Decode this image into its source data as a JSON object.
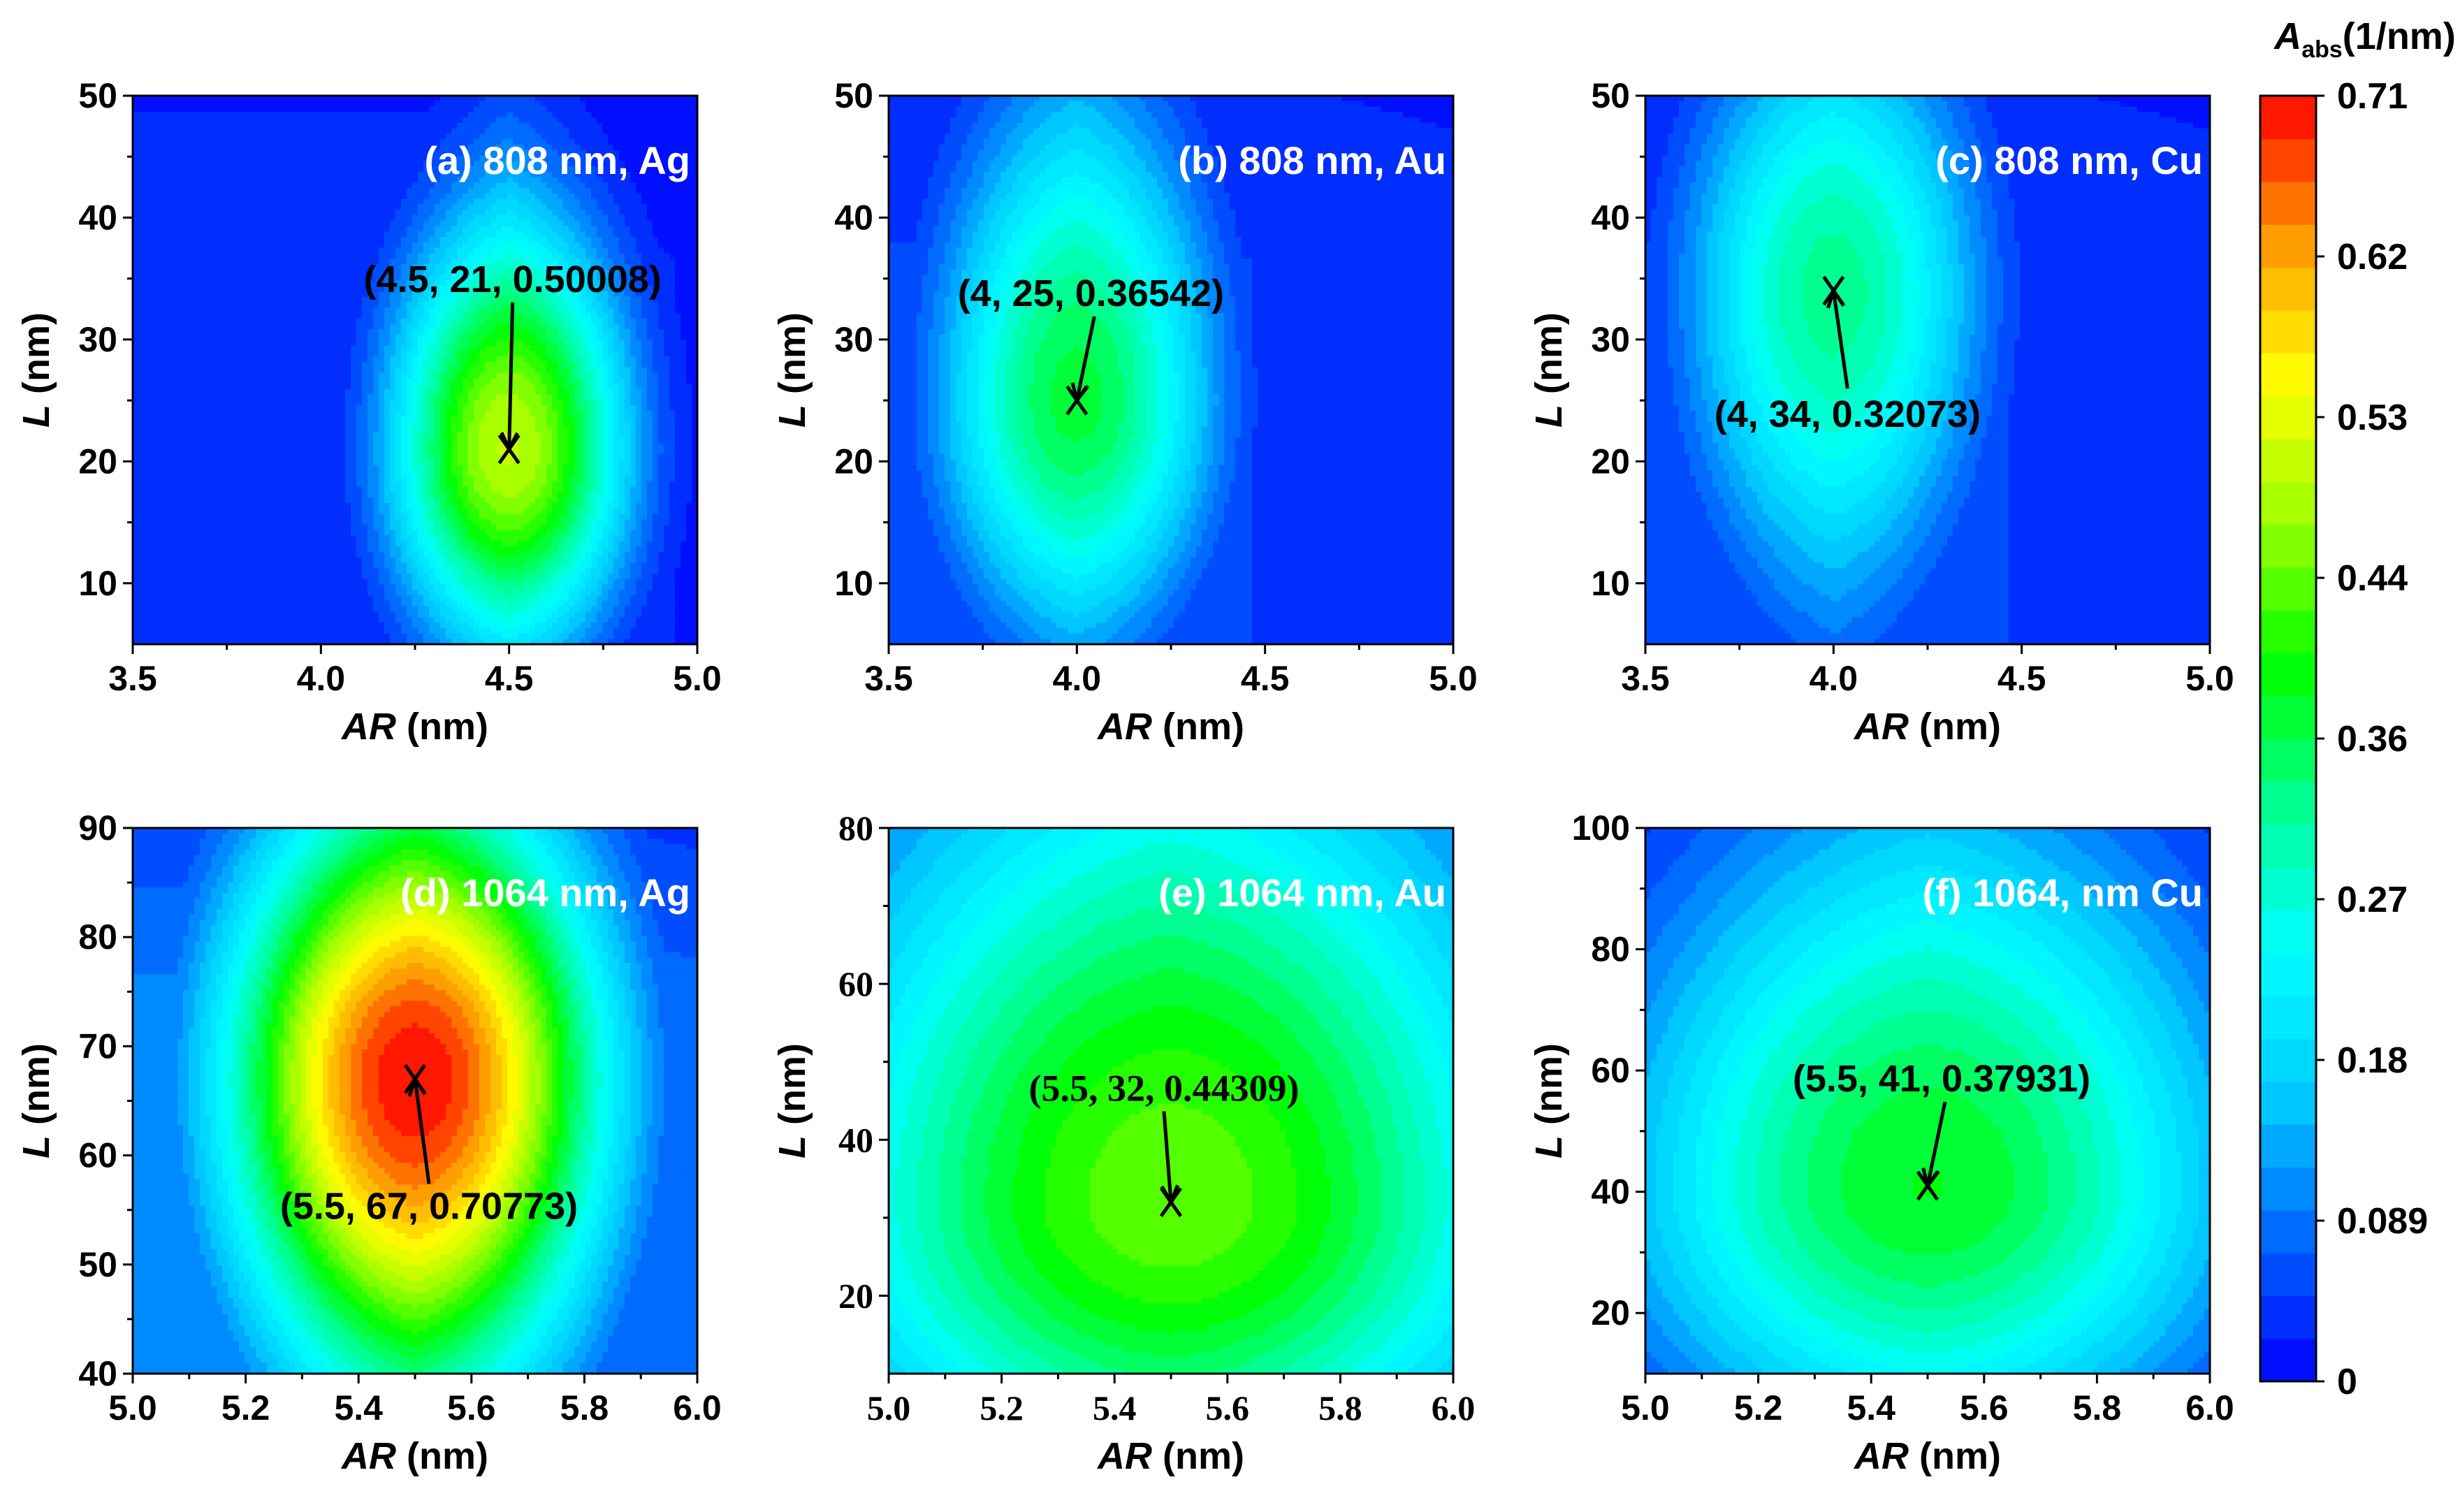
{
  "colorbar": {
    "title_main": "A",
    "title_sub": "abs",
    "title_unit": "(1/nm)",
    "ticks": [
      "0.71",
      "0.62",
      "0.53",
      "0.44",
      "0.36",
      "0.27",
      "0.18",
      "0.089",
      "0"
    ],
    "range": [
      0,
      0.71
    ],
    "levels": 30,
    "colormap": [
      "#0000ff",
      "#0066ff",
      "#00ccff",
      "#00ffff",
      "#00ff99",
      "#00ff00",
      "#99ff00",
      "#ffff00",
      "#ff9900",
      "#ff0000"
    ]
  },
  "chart_data": [
    {
      "type": "heatmap",
      "title": "(a) 808 nm, Ag",
      "xlabel_italic": "AR",
      "xlabel_unit": " (nm)",
      "ylabel_italic": "L",
      "ylabel_unit": " (nm)",
      "xlim": [
        3.5,
        5.0
      ],
      "ylim": [
        5,
        50
      ],
      "xticks": [
        3.5,
        4.0,
        4.5,
        5.0
      ],
      "xtick_labels": [
        "3.5",
        "4.0",
        "4.5",
        "5.0"
      ],
      "yticks": [
        10,
        20,
        30,
        40,
        50
      ],
      "ytick_labels": [
        "10",
        "20",
        "30",
        "40",
        "50"
      ],
      "tick_font": "sans",
      "peak": {
        "x": 4.5,
        "y": 21,
        "value": 0.50008
      },
      "annotation": "(4.5, 21, 0.50008)",
      "field": {
        "sx": 0.26,
        "sy_below": 12,
        "sy_above": 14,
        "base": 0.04,
        "edge_cool": 0.5
      }
    },
    {
      "type": "heatmap",
      "title": "(b) 808 nm, Au",
      "xlabel_italic": "AR",
      "xlabel_unit": " (nm)",
      "ylabel_italic": "L",
      "ylabel_unit": " (nm)",
      "xlim": [
        3.5,
        5.0
      ],
      "ylim": [
        5,
        50
      ],
      "xticks": [
        3.5,
        4.0,
        4.5,
        5.0
      ],
      "xtick_labels": [
        "3.5",
        "4.0",
        "4.5",
        "5.0"
      ],
      "yticks": [
        10,
        20,
        30,
        40,
        50
      ],
      "ytick_labels": [
        "10",
        "20",
        "30",
        "40",
        "50"
      ],
      "tick_font": "sans",
      "peak": {
        "x": 4.0,
        "y": 25,
        "value": 0.36542
      },
      "annotation": "(4, 25, 0.36542)",
      "field": {
        "sx": 0.3,
        "sy_below": 14,
        "sy_above": 18,
        "base": 0.05,
        "edge_cool": 0.3
      }
    },
    {
      "type": "heatmap",
      "title": "(c) 808 nm, Cu",
      "xlabel_italic": "AR",
      "xlabel_unit": " (nm)",
      "ylabel_italic": "L",
      "ylabel_unit": " (nm)",
      "xlim": [
        3.5,
        5.0
      ],
      "ylim": [
        5,
        50
      ],
      "xticks": [
        3.5,
        4.0,
        4.5,
        5.0
      ],
      "xtick_labels": [
        "3.5",
        "4.0",
        "4.5",
        "5.0"
      ],
      "yticks": [
        10,
        20,
        30,
        40,
        50
      ],
      "ytick_labels": [
        "10",
        "20",
        "30",
        "40",
        "50"
      ],
      "tick_font": "sans",
      "peak": {
        "x": 4.0,
        "y": 34,
        "value": 0.32073
      },
      "annotation": "(4, 34, 0.32073)",
      "field": {
        "sx": 0.32,
        "sy_below": 18,
        "sy_above": 16,
        "base": 0.05,
        "edge_cool": 0.3
      }
    },
    {
      "type": "heatmap",
      "title": "(d) 1064 nm, Ag",
      "xlabel_italic": "AR",
      "xlabel_unit": " (nm)",
      "ylabel_italic": "L",
      "ylabel_unit": " (nm)",
      "xlim": [
        5.0,
        6.0
      ],
      "ylim": [
        40,
        90
      ],
      "xticks": [
        5.0,
        5.2,
        5.4,
        5.6,
        5.8,
        6.0
      ],
      "xtick_labels": [
        "5.0",
        "5.2",
        "5.4",
        "5.6",
        "5.8",
        "6.0"
      ],
      "yticks": [
        40,
        50,
        60,
        70,
        80,
        90
      ],
      "ytick_labels": [
        "40",
        "50",
        "60",
        "70",
        "80",
        "90"
      ],
      "tick_font": "sans",
      "peak": {
        "x": 5.5,
        "y": 67,
        "value": 0.70773
      },
      "annotation": "(5.5, 67, 0.70773)",
      "field": {
        "sx": 0.28,
        "sy_below": 22,
        "sy_above": 20,
        "base": 0.1,
        "edge_cool": 0.25
      }
    },
    {
      "type": "heatmap",
      "title": "(e) 1064 nm, Au",
      "xlabel_italic": "AR",
      "xlabel_unit": " (nm)",
      "ylabel_italic": "L",
      "ylabel_unit": " (nm)",
      "xlim": [
        5.0,
        6.0
      ],
      "ylim": [
        10,
        80
      ],
      "xticks": [
        5.0,
        5.2,
        5.4,
        5.6,
        5.8,
        6.0
      ],
      "xtick_labels": [
        "5.0",
        "5.2",
        "5.4",
        "5.6",
        "5.8",
        "6.0"
      ],
      "yticks": [
        20,
        40,
        60,
        80
      ],
      "ytick_labels": [
        "20",
        "40",
        "60",
        "80"
      ],
      "tick_font": "serif",
      "peak": {
        "x": 5.5,
        "y": 32,
        "value": 0.44309
      },
      "annotation": "(5.5, 32, 0.44309)",
      "field": {
        "sx": 0.55,
        "sy_below": 30,
        "sy_above": 45,
        "base": 0.08,
        "edge_cool": 0.35
      }
    },
    {
      "type": "heatmap",
      "title": "(f) 1064, nm Cu",
      "xlabel_italic": "AR",
      "xlabel_unit": " (nm)",
      "ylabel_italic": "L",
      "ylabel_unit": " (nm)",
      "xlim": [
        5.0,
        6.0
      ],
      "ylim": [
        10,
        100
      ],
      "xticks": [
        5.0,
        5.2,
        5.4,
        5.6,
        5.8,
        6.0
      ],
      "xtick_labels": [
        "5.0",
        "5.2",
        "5.4",
        "5.6",
        "5.8",
        "6.0"
      ],
      "yticks": [
        20,
        40,
        60,
        80,
        100
      ],
      "ytick_labels": [
        "20",
        "40",
        "60",
        "80",
        "100"
      ],
      "tick_font": "sans",
      "peak": {
        "x": 5.5,
        "y": 41,
        "value": 0.37931
      },
      "annotation": "(5.5, 41, 0.37931)",
      "field": {
        "sx": 0.45,
        "sy_below": 32,
        "sy_above": 45,
        "base": 0.08,
        "edge_cool": 0.35
      }
    }
  ]
}
